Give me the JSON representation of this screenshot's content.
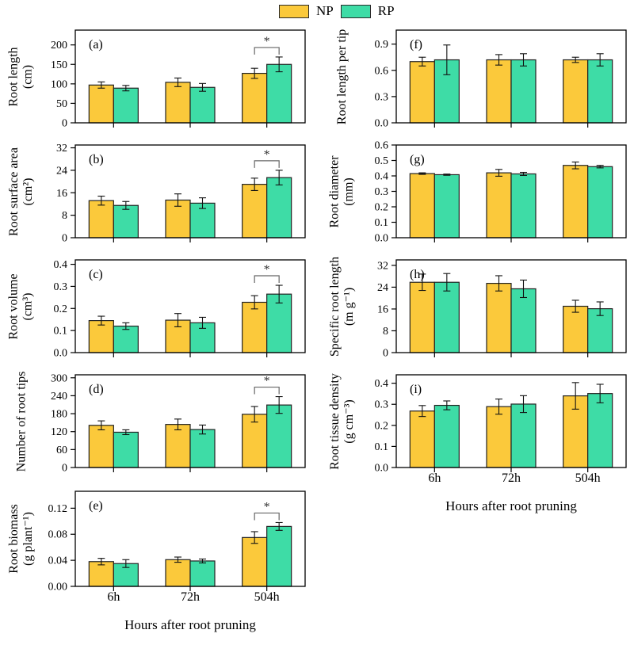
{
  "legend": {
    "entries": [
      {
        "label": "NP",
        "color": "#FBC93B"
      },
      {
        "label": "RP",
        "color": "#3EDCA6"
      }
    ]
  },
  "xlabel": "Hours after root pruning",
  "categories": [
    "6h",
    "72h",
    "504h"
  ],
  "style": {
    "bar_border": "#222222",
    "axis_color": "#000000",
    "error_color": "#111111",
    "bracket_color": "#666666"
  },
  "chart_data": [
    {
      "id": "a",
      "panel_label": "(a)",
      "type": "bar",
      "ylabel": "Root length",
      "unit": "(cm)",
      "ylim": [
        0,
        238
      ],
      "yticks": [
        0,
        50,
        100,
        150,
        200
      ],
      "ytick_labels": [
        "0",
        "50",
        "100",
        "150",
        "200"
      ],
      "series": [
        {
          "name": "NP",
          "values": [
            97,
            104,
            127
          ],
          "errors": [
            8,
            11,
            13
          ]
        },
        {
          "name": "RP",
          "values": [
            89,
            91,
            150
          ],
          "errors": [
            7,
            10,
            19
          ]
        }
      ],
      "significance": [
        null,
        null,
        "*"
      ]
    },
    {
      "id": "b",
      "panel_label": "(b)",
      "type": "bar",
      "ylabel": "Root surface area",
      "unit": "(cm²)",
      "ylim": [
        0,
        33
      ],
      "yticks": [
        0,
        8,
        16,
        24,
        32
      ],
      "ytick_labels": [
        "0",
        "8",
        "16",
        "24",
        "32"
      ],
      "series": [
        {
          "name": "NP",
          "values": [
            13.2,
            13.4,
            19.0
          ],
          "errors": [
            1.6,
            2.2,
            2.2
          ]
        },
        {
          "name": "RP",
          "values": [
            11.5,
            12.3,
            21.4
          ],
          "errors": [
            1.4,
            1.9,
            2.6
          ]
        }
      ],
      "significance": [
        null,
        null,
        "*"
      ]
    },
    {
      "id": "c",
      "panel_label": "(c)",
      "type": "bar",
      "ylabel": "Root volume",
      "unit": "(cm³)",
      "ylim": [
        0,
        0.42
      ],
      "yticks": [
        0,
        0.1,
        0.2,
        0.3,
        0.4
      ],
      "ytick_labels": [
        "0.0",
        "0.1",
        "0.2",
        "0.3",
        "0.4"
      ],
      "series": [
        {
          "name": "NP",
          "values": [
            0.145,
            0.147,
            0.228
          ],
          "errors": [
            0.02,
            0.03,
            0.03
          ]
        },
        {
          "name": "RP",
          "values": [
            0.12,
            0.135,
            0.265
          ],
          "errors": [
            0.015,
            0.025,
            0.04
          ]
        }
      ],
      "significance": [
        null,
        null,
        "*"
      ]
    },
    {
      "id": "d",
      "panel_label": "(d)",
      "type": "bar",
      "ylabel": "Number of root tips",
      "unit": "",
      "ylim": [
        0,
        310
      ],
      "yticks": [
        0,
        60,
        120,
        180,
        240,
        300
      ],
      "ytick_labels": [
        "0",
        "60",
        "120",
        "180",
        "240",
        "300"
      ],
      "series": [
        {
          "name": "NP",
          "values": [
            141,
            144,
            178
          ],
          "errors": [
            15,
            18,
            26
          ]
        },
        {
          "name": "RP",
          "values": [
            118,
            127,
            209
          ],
          "errors": [
            8,
            15,
            28
          ]
        }
      ],
      "significance": [
        null,
        null,
        "*"
      ]
    },
    {
      "id": "e",
      "panel_label": "(e)",
      "type": "bar",
      "ylabel": "Root biomass",
      "unit": "(g plant⁻¹)",
      "ylim": [
        0,
        0.146
      ],
      "yticks": [
        0,
        0.04,
        0.08,
        0.12
      ],
      "ytick_labels": [
        "0.00",
        "0.04",
        "0.08",
        "0.12"
      ],
      "series": [
        {
          "name": "NP",
          "values": [
            0.038,
            0.041,
            0.075
          ],
          "errors": [
            0.005,
            0.004,
            0.009
          ]
        },
        {
          "name": "RP",
          "values": [
            0.035,
            0.039,
            0.092
          ],
          "errors": [
            0.006,
            0.003,
            0.006
          ]
        }
      ],
      "significance": [
        null,
        null,
        "*"
      ]
    },
    {
      "id": "f",
      "panel_label": "(f)",
      "type": "bar",
      "ylabel": "Root length per tip",
      "unit": "",
      "ylim": [
        0,
        1.06
      ],
      "yticks": [
        0,
        0.3,
        0.6,
        0.9
      ],
      "ytick_labels": [
        "0.0",
        "0.3",
        "0.6",
        "0.9"
      ],
      "series": [
        {
          "name": "NP",
          "values": [
            0.7,
            0.72,
            0.72
          ],
          "errors": [
            0.05,
            0.06,
            0.03
          ]
        },
        {
          "name": "RP",
          "values": [
            0.72,
            0.72,
            0.72
          ],
          "errors": [
            0.17,
            0.07,
            0.07
          ]
        }
      ],
      "significance": [
        null,
        null,
        null
      ]
    },
    {
      "id": "g",
      "panel_label": "(g)",
      "type": "bar",
      "ylabel": "Root diameter",
      "unit": "(mm)",
      "ylim": [
        0,
        0.6
      ],
      "yticks": [
        0,
        0.1,
        0.2,
        0.3,
        0.4,
        0.5,
        0.6
      ],
      "ytick_labels": [
        "0.0",
        "0.1",
        "0.2",
        "0.3",
        "0.4",
        "0.5",
        "0.6"
      ],
      "series": [
        {
          "name": "NP",
          "values": [
            0.415,
            0.42,
            0.468
          ],
          "errors": [
            0.005,
            0.022,
            0.022
          ]
        },
        {
          "name": "RP",
          "values": [
            0.408,
            0.413,
            0.46
          ],
          "errors": [
            0.004,
            0.01,
            0.008
          ]
        }
      ],
      "significance": [
        null,
        null,
        null
      ]
    },
    {
      "id": "h",
      "panel_label": "(h)",
      "type": "bar",
      "ylabel": "Specific root length",
      "unit": "(m g⁻¹)",
      "ylim": [
        0,
        34
      ],
      "yticks": [
        0,
        8,
        16,
        24,
        32
      ],
      "ytick_labels": [
        "0",
        "8",
        "16",
        "24",
        "32"
      ],
      "series": [
        {
          "name": "NP",
          "values": [
            25.8,
            25.4,
            17.0
          ],
          "errors": [
            3.0,
            2.8,
            2.2
          ]
        },
        {
          "name": "RP",
          "values": [
            25.8,
            23.4,
            16.1
          ],
          "errors": [
            3.2,
            3.2,
            2.5
          ]
        }
      ],
      "significance": [
        null,
        null,
        null
      ]
    },
    {
      "id": "i",
      "panel_label": "(i)",
      "type": "bar",
      "ylabel": "Root tissue density",
      "unit": "(g cm⁻³)",
      "ylim": [
        0,
        0.44
      ],
      "yticks": [
        0,
        0.1,
        0.2,
        0.3,
        0.4
      ],
      "ytick_labels": [
        "0.0",
        "0.1",
        "0.2",
        "0.3",
        "0.4"
      ],
      "series": [
        {
          "name": "NP",
          "values": [
            0.268,
            0.289,
            0.34
          ],
          "errors": [
            0.026,
            0.036,
            0.063
          ]
        },
        {
          "name": "RP",
          "values": [
            0.295,
            0.301,
            0.351
          ],
          "errors": [
            0.021,
            0.04,
            0.044
          ]
        }
      ],
      "significance": [
        null,
        null,
        null
      ]
    }
  ]
}
